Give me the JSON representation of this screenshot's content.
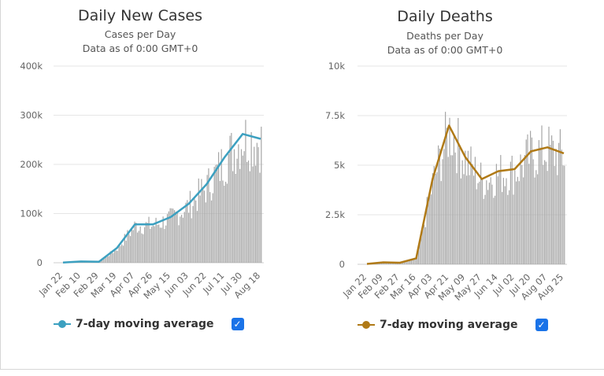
{
  "chart_data": [
    {
      "type": "bar",
      "title": "Daily New Cases",
      "subtitle": [
        "Cases per Day",
        "Data as of 0:00 GMT+0"
      ],
      "xlabel": "",
      "ylabel": "",
      "ylim": [
        0,
        400000
      ],
      "y_ticks": [
        0,
        100000,
        200000,
        300000,
        400000
      ],
      "y_tick_labels": [
        "0",
        "100k",
        "200k",
        "300k",
        "400k"
      ],
      "x_tick_labels": [
        "Jan 22",
        "Feb 10",
        "Feb 29",
        "Mar 19",
        "Apr 07",
        "Apr 26",
        "May 15",
        "Jun 03",
        "Jun 22",
        "Jul 11",
        "Jul 30",
        "Aug 18"
      ],
      "grid": true,
      "legend_position": "bottom-left",
      "bar_color": "#a6a6a6",
      "line_color": "#3ca0c0",
      "series": [
        {
          "name": "7-day moving average",
          "kind": "line",
          "x": [
            "Jan 22",
            "Feb 10",
            "Feb 29",
            "Mar 19",
            "Apr 07",
            "Apr 26",
            "May 15",
            "Jun 03",
            "Jun 22",
            "Jul 11",
            "Jul 30",
            "Aug 18"
          ],
          "values": [
            500,
            2500,
            2000,
            30000,
            78000,
            78000,
            93000,
            120000,
            160000,
            215000,
            262000,
            252000
          ]
        }
      ],
      "legend_checkbox": "✓"
    },
    {
      "type": "bar",
      "title": "Daily Deaths",
      "subtitle": [
        "Deaths per Day",
        "Data as of 0:00 GMT+0"
      ],
      "xlabel": "",
      "ylabel": "",
      "ylim": [
        0,
        10000
      ],
      "y_ticks": [
        0,
        2500,
        5000,
        7500,
        10000
      ],
      "y_tick_labels": [
        "0",
        "2.5k",
        "5k",
        "7.5k",
        "10k"
      ],
      "x_tick_labels": [
        "Jan 22",
        "Feb 09",
        "Feb 27",
        "Mar 16",
        "Apr 03",
        "Apr 21",
        "May 09",
        "May 27",
        "Jun 14",
        "Jul 02",
        "Jul 20",
        "Aug 07",
        "Aug 25"
      ],
      "grid": true,
      "legend_position": "bottom-left",
      "bar_color": "#a6a6a6",
      "line_color": "#b07a17",
      "series": [
        {
          "name": "7-day moving average",
          "kind": "line",
          "x": [
            "Jan 22",
            "Feb 09",
            "Feb 27",
            "Mar 16",
            "Apr 03",
            "Apr 21",
            "May 09",
            "May 27",
            "Jun 14",
            "Jul 02",
            "Jul 20",
            "Aug 07",
            "Aug 25"
          ],
          "values": [
            20,
            100,
            80,
            300,
            4300,
            7000,
            5400,
            4300,
            4700,
            4800,
            5700,
            5900,
            5600
          ]
        }
      ],
      "legend_checkbox": "✓"
    }
  ]
}
